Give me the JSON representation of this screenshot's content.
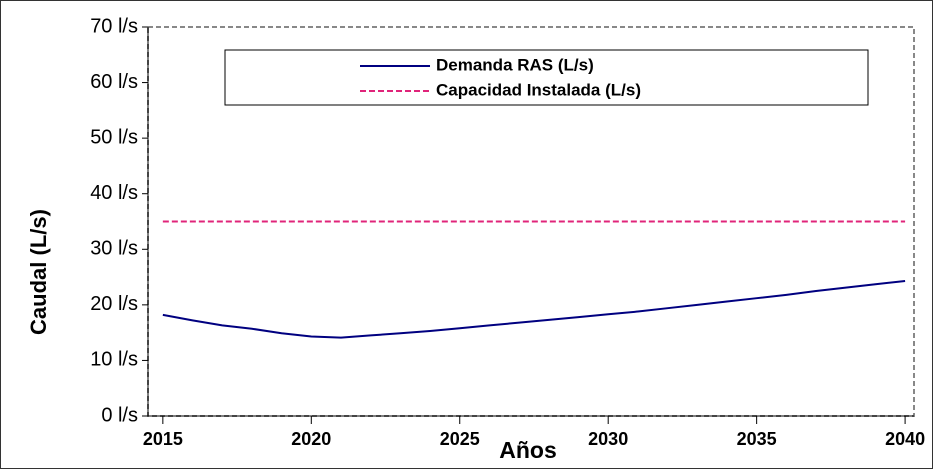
{
  "chart_data": {
    "type": "line",
    "xlabel": "Años",
    "ylabel": "Caudal (L/s)",
    "x": [
      2015,
      2016,
      2017,
      2018,
      2019,
      2020,
      2021,
      2022,
      2023,
      2024,
      2025,
      2026,
      2027,
      2028,
      2029,
      2030,
      2031,
      2032,
      2033,
      2034,
      2035,
      2036,
      2037,
      2038,
      2039,
      2040
    ],
    "series": [
      {
        "name": "Demanda RAS (L/s)",
        "color": "#000080",
        "dash": false,
        "values": [
          18.2,
          17.2,
          16.3,
          15.7,
          14.9,
          14.3,
          14.1,
          14.5,
          14.9,
          15.3,
          15.8,
          16.3,
          16.8,
          17.3,
          17.8,
          18.3,
          18.8,
          19.4,
          20.0,
          20.6,
          21.2,
          21.8,
          22.5,
          23.1,
          23.7,
          24.3
        ]
      },
      {
        "name": "Capacidad Instalada (L/s)",
        "color": "#e0247a",
        "dash": true,
        "values": [
          35,
          35,
          35,
          35,
          35,
          35,
          35,
          35,
          35,
          35,
          35,
          35,
          35,
          35,
          35,
          35,
          35,
          35,
          35,
          35,
          35,
          35,
          35,
          35,
          35,
          35
        ]
      }
    ],
    "xlim": [
      2014.5,
      2040.3
    ],
    "xticks": [
      2015,
      2020,
      2025,
      2030,
      2035,
      2040
    ],
    "ylim": [
      0,
      70
    ],
    "yticks": [
      {
        "value": 0,
        "label": "0 l/s"
      },
      {
        "value": 10,
        "label": "10 l/s"
      },
      {
        "value": 20,
        "label": "20 l/s"
      },
      {
        "value": 30,
        "label": "30 l/s"
      },
      {
        "value": 40,
        "label": "40 l/s"
      },
      {
        "value": 50,
        "label": "50 l/s"
      },
      {
        "value": 60,
        "label": "60 l/s"
      },
      {
        "value": 70,
        "label": "70 l/s"
      }
    ],
    "grid": false,
    "legend": "top"
  }
}
